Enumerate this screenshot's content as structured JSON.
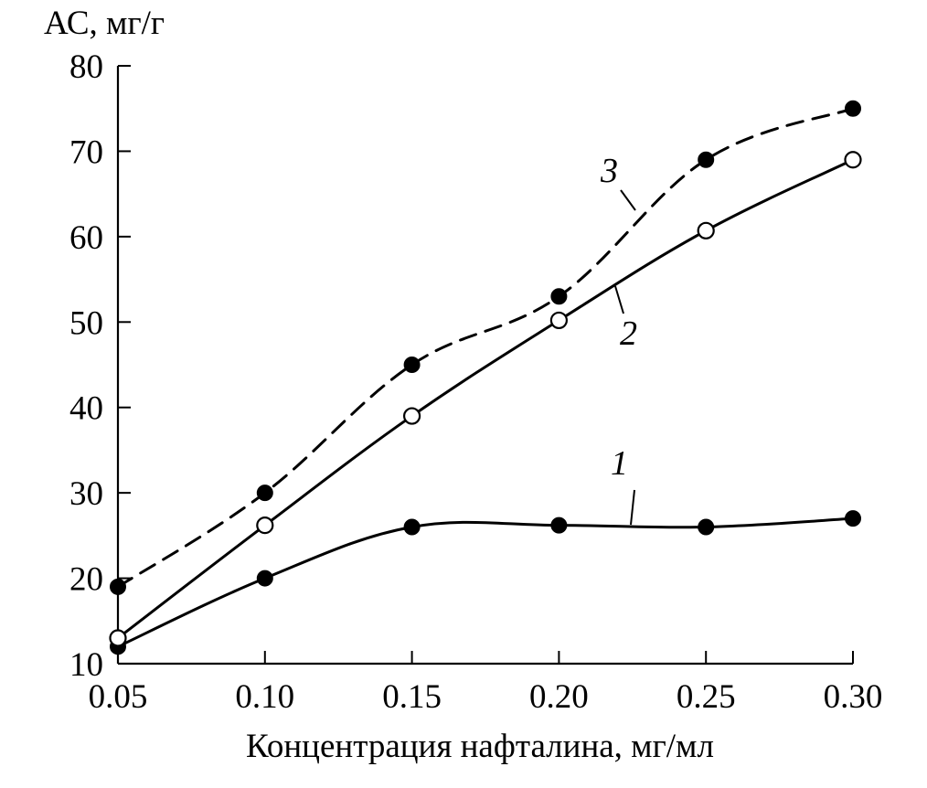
{
  "chart_data": {
    "type": "line",
    "xlabel": "Концентрация нафталина, мг/мл",
    "ylabel": "АС, мг/г",
    "x": [
      0.05,
      0.1,
      0.15,
      0.2,
      0.25,
      0.3
    ],
    "x_tick_labels": [
      "0.05",
      "0.10",
      "0.15",
      "0.20",
      "0.25",
      "0.30"
    ],
    "y_ticks": [
      10,
      20,
      30,
      40,
      50,
      60,
      70,
      80
    ],
    "y_tick_labels": [
      "10",
      "20",
      "30",
      "40",
      "50",
      "60",
      "70",
      "80"
    ],
    "xlim": [
      0.05,
      0.3
    ],
    "ylim": [
      10,
      80
    ],
    "grid": false,
    "series": [
      {
        "label": "1",
        "values": [
          12,
          20,
          26,
          26.2,
          26,
          27
        ],
        "marker": "filled-circle",
        "line_style": "solid"
      },
      {
        "label": "2",
        "values": [
          13,
          26.2,
          39,
          50.2,
          60.7,
          69
        ],
        "marker": "open-circle",
        "line_style": "solid"
      },
      {
        "label": "3",
        "values": [
          19,
          30,
          45,
          53,
          69,
          75
        ],
        "marker": "filled-circle",
        "line_style": "dashed"
      }
    ]
  }
}
